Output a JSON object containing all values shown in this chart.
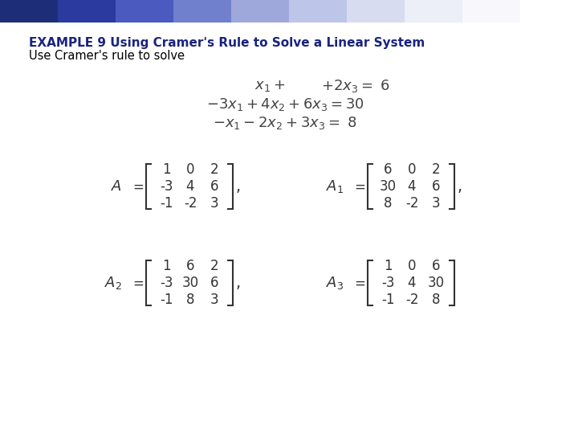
{
  "title_bold": "EXAMPLE 9 Using Cramer's Rule to Solve a Linear System",
  "title_normal": "Use Cramer's rule to solve",
  "bg_color": "#ffffff",
  "title_color": "#1a237e",
  "body_color": "#000000",
  "matrix_A": [
    [
      1,
      0,
      2
    ],
    [
      -3,
      4,
      6
    ],
    [
      -1,
      -2,
      3
    ]
  ],
  "matrix_A1": [
    [
      6,
      0,
      2
    ],
    [
      30,
      4,
      6
    ],
    [
      8,
      -2,
      3
    ]
  ],
  "matrix_A2": [
    [
      1,
      6,
      2
    ],
    [
      -3,
      30,
      6
    ],
    [
      -1,
      8,
      3
    ]
  ],
  "matrix_A3": [
    [
      1,
      0,
      6
    ],
    [
      -3,
      4,
      30
    ],
    [
      -1,
      -2,
      8
    ]
  ],
  "header_colors": [
    "#1e2d78",
    "#2a3a9e",
    "#4a5abf",
    "#7080cc",
    "#9fa8da",
    "#bdc5e8",
    "#d8dcf0",
    "#eceef8",
    "#f8f8fc",
    "#ffffff"
  ],
  "dark_square_size": 22,
  "eq_font": 13,
  "mat_font": 12,
  "title_font": 11,
  "subtitle_font": 10.5
}
